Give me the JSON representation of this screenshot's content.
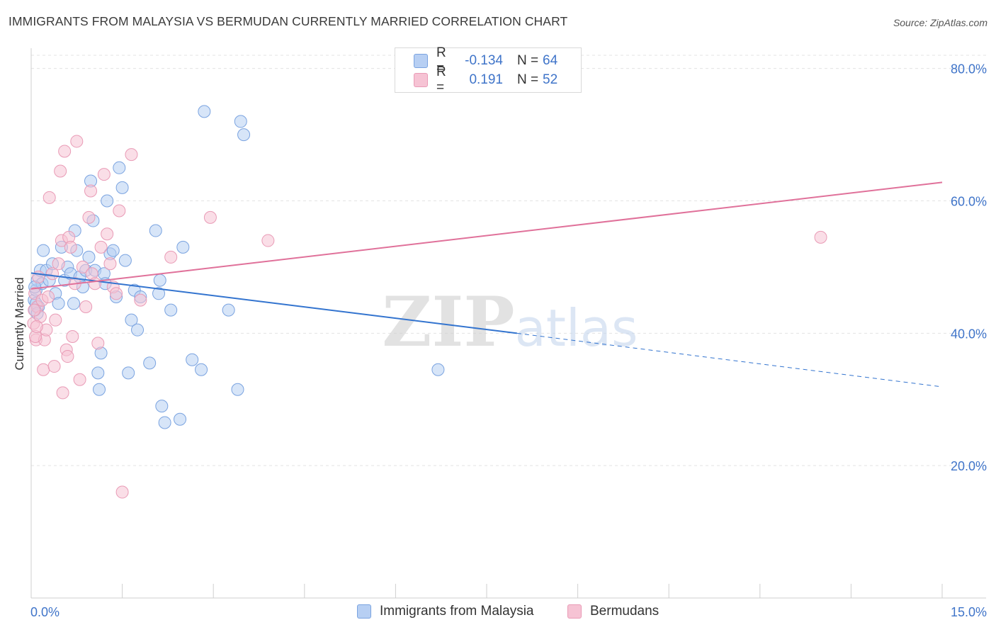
{
  "header": {
    "title": "IMMIGRANTS FROM MALAYSIA VS BERMUDAN CURRENTLY MARRIED CORRELATION CHART",
    "source": "Source: ZipAtlas.com"
  },
  "colors": {
    "blue_fill": "#b7cff3",
    "blue_stroke": "#7aa3e0",
    "blue_line": "#3374cf",
    "pink_fill": "#f6c3d4",
    "pink_stroke": "#e99bb6",
    "pink_line": "#e0719a",
    "tick_label": "#3f74c9",
    "grid": "#e3e3e3"
  },
  "legend": {
    "rows": [
      {
        "r_label": "R =",
        "r_value": "-0.134",
        "n_label": "N =",
        "n_value": "64",
        "color": "blue"
      },
      {
        "r_label": "R =",
        "r_value": "0.191",
        "n_label": "N =",
        "n_value": "52",
        "color": "pink"
      }
    ]
  },
  "chart_data": {
    "type": "scatter",
    "title": "IMMIGRANTS FROM MALAYSIA VS BERMUDAN CURRENTLY MARRIED CORRELATION CHART",
    "xlabel": "",
    "ylabel": "Currently Married",
    "xlim": [
      0,
      15
    ],
    "ylim": [
      0,
      82
    ],
    "x_tick_labels": [
      "0.0%",
      "15.0%"
    ],
    "y_ticks": [
      20,
      40,
      60,
      80
    ],
    "y_tick_labels": [
      "20.0%",
      "40.0%",
      "60.0%",
      "80.0%"
    ],
    "grid": true,
    "legend_position": "top-center",
    "watermark": "ZIPatlas",
    "series": [
      {
        "name": "Immigrants from Malaysia",
        "color": "#b7cff3",
        "trend": {
          "x0": 0.0,
          "y0": 49.1,
          "x1": 8.0,
          "y1": 40.0,
          "dashed_to_x": 15.0,
          "dashed_to_y": 31.9
        },
        "points": [
          [
            0.05,
            45.0
          ],
          [
            0.06,
            43.5
          ],
          [
            0.08,
            46.5
          ],
          [
            0.1,
            48.0
          ],
          [
            0.12,
            44.0
          ],
          [
            0.15,
            49.5
          ],
          [
            0.18,
            47.5
          ],
          [
            0.2,
            52.5
          ],
          [
            0.25,
            49.5
          ],
          [
            0.3,
            48.0
          ],
          [
            0.35,
            50.5
          ],
          [
            0.4,
            46.0
          ],
          [
            0.45,
            44.5
          ],
          [
            0.5,
            53.0
          ],
          [
            0.55,
            48.0
          ],
          [
            0.6,
            50.0
          ],
          [
            0.65,
            49.0
          ],
          [
            0.7,
            44.5
          ],
          [
            0.72,
            55.5
          ],
          [
            0.75,
            52.5
          ],
          [
            0.8,
            48.5
          ],
          [
            0.85,
            47.0
          ],
          [
            0.9,
            49.5
          ],
          [
            0.95,
            51.5
          ],
          [
            0.98,
            63.0
          ],
          [
            1.02,
            57.0
          ],
          [
            1.05,
            49.5
          ],
          [
            1.1,
            34.0
          ],
          [
            1.12,
            31.5
          ],
          [
            1.15,
            37.0
          ],
          [
            1.2,
            49.0
          ],
          [
            1.22,
            47.5
          ],
          [
            1.25,
            60.0
          ],
          [
            1.3,
            52.0
          ],
          [
            1.35,
            52.5
          ],
          [
            1.4,
            45.5
          ],
          [
            1.45,
            65.0
          ],
          [
            1.5,
            62.0
          ],
          [
            1.55,
            51.0
          ],
          [
            1.6,
            34.0
          ],
          [
            1.65,
            42.0
          ],
          [
            1.7,
            46.5
          ],
          [
            1.75,
            40.5
          ],
          [
            1.8,
            45.5
          ],
          [
            1.95,
            35.5
          ],
          [
            2.05,
            55.5
          ],
          [
            2.1,
            46.0
          ],
          [
            2.12,
            48.0
          ],
          [
            2.15,
            29.0
          ],
          [
            2.2,
            26.5
          ],
          [
            2.3,
            43.5
          ],
          [
            2.45,
            27.0
          ],
          [
            2.5,
            53.0
          ],
          [
            2.65,
            36.0
          ],
          [
            2.8,
            34.5
          ],
          [
            2.85,
            73.5
          ],
          [
            3.25,
            43.5
          ],
          [
            3.4,
            31.5
          ],
          [
            3.45,
            72.0
          ],
          [
            3.5,
            70.0
          ],
          [
            6.7,
            34.5
          ],
          [
            0.06,
            47.0
          ],
          [
            0.08,
            44.5
          ],
          [
            0.1,
            43.0
          ]
        ]
      },
      {
        "name": "Bermudans",
        "color": "#f6c3d4",
        "trend": {
          "x0": 0.0,
          "y0": 46.7,
          "x1": 15.0,
          "y1": 62.8
        },
        "points": [
          [
            0.04,
            41.5
          ],
          [
            0.06,
            46.0
          ],
          [
            0.08,
            39.0
          ],
          [
            0.1,
            44.0
          ],
          [
            0.12,
            48.5
          ],
          [
            0.15,
            42.5
          ],
          [
            0.18,
            45.0
          ],
          [
            0.2,
            34.5
          ],
          [
            0.22,
            39.0
          ],
          [
            0.25,
            40.5
          ],
          [
            0.28,
            45.5
          ],
          [
            0.3,
            60.5
          ],
          [
            0.35,
            49.0
          ],
          [
            0.38,
            35.0
          ],
          [
            0.4,
            42.0
          ],
          [
            0.45,
            50.5
          ],
          [
            0.48,
            64.5
          ],
          [
            0.5,
            54.0
          ],
          [
            0.52,
            31.0
          ],
          [
            0.55,
            67.5
          ],
          [
            0.58,
            37.5
          ],
          [
            0.6,
            36.5
          ],
          [
            0.62,
            54.5
          ],
          [
            0.65,
            53.0
          ],
          [
            0.68,
            39.5
          ],
          [
            0.72,
            47.5
          ],
          [
            0.75,
            69.0
          ],
          [
            0.8,
            33.0
          ],
          [
            0.85,
            50.0
          ],
          [
            0.9,
            44.0
          ],
          [
            0.95,
            57.5
          ],
          [
            0.98,
            61.5
          ],
          [
            1.0,
            49.0
          ],
          [
            1.05,
            47.5
          ],
          [
            1.1,
            38.5
          ],
          [
            1.15,
            53.0
          ],
          [
            1.2,
            64.0
          ],
          [
            1.25,
            55.0
          ],
          [
            1.3,
            50.5
          ],
          [
            1.35,
            47.0
          ],
          [
            1.4,
            46.0
          ],
          [
            1.45,
            58.5
          ],
          [
            1.5,
            16.0
          ],
          [
            1.65,
            67.0
          ],
          [
            1.8,
            45.0
          ],
          [
            2.3,
            51.5
          ],
          [
            2.95,
            57.5
          ],
          [
            3.9,
            54.0
          ],
          [
            13.0,
            54.5
          ],
          [
            0.05,
            43.5
          ],
          [
            0.07,
            39.5
          ],
          [
            0.09,
            41.0
          ]
        ]
      }
    ]
  },
  "bottom_legend": {
    "items": [
      {
        "label": "Immigrants from Malaysia",
        "color": "blue"
      },
      {
        "label": "Bermudans",
        "color": "pink"
      }
    ]
  }
}
